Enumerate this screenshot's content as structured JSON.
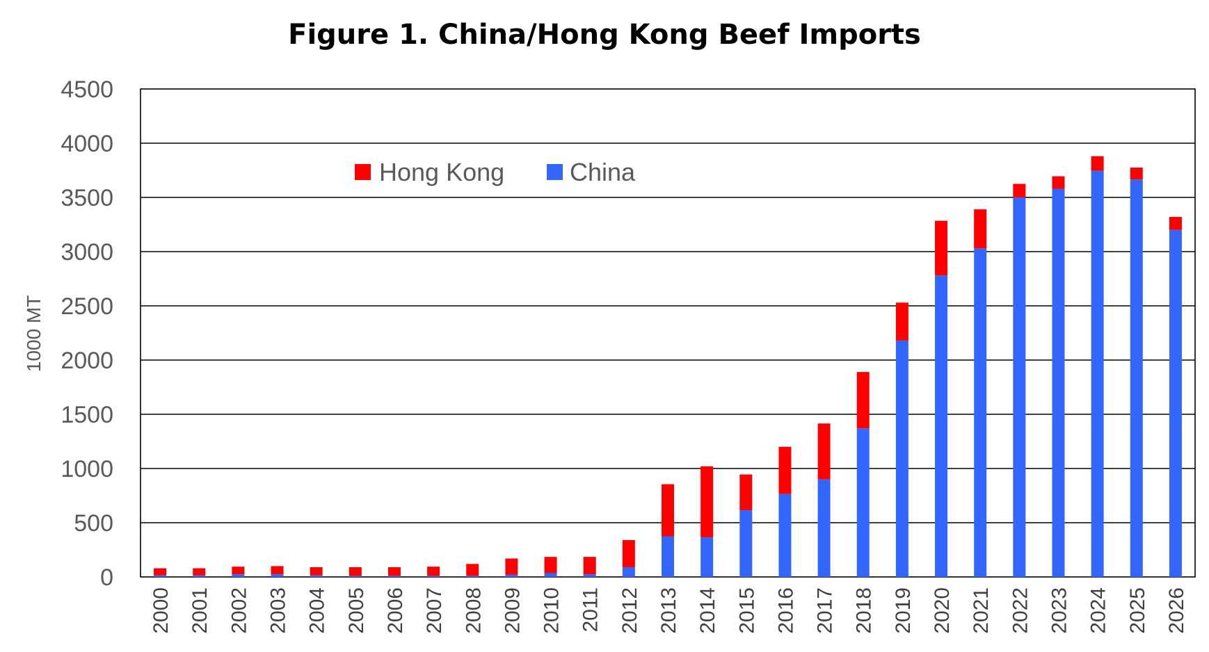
{
  "chart_data": {
    "type": "bar",
    "stacked": true,
    "title": "Figure 1. China/Hong Kong Beef Imports",
    "ylabel": "1000 MT",
    "xlabel": "",
    "ylim": [
      0,
      4500
    ],
    "yticks": [
      0,
      500,
      1000,
      1500,
      2000,
      2500,
      3000,
      3500,
      4000,
      4500
    ],
    "grid": true,
    "legend_position": "top-left",
    "categories": [
      "2000",
      "2001",
      "2002",
      "2003",
      "2004",
      "2005",
      "2006",
      "2007",
      "2008",
      "2009",
      "2010",
      "2011",
      "2012",
      "2013",
      "2014",
      "2015",
      "2016",
      "2017",
      "2018",
      "2019",
      "2020",
      "2021",
      "2022",
      "2023",
      "2024",
      "2025",
      "2026"
    ],
    "series": [
      {
        "name": "China",
        "color": "#3366FF",
        "values": [
          15,
          15,
          25,
          25,
          15,
          10,
          10,
          10,
          10,
          20,
          35,
          25,
          90,
          375,
          365,
          615,
          765,
          900,
          1370,
          2180,
          2780,
          3030,
          3500,
          3580,
          3745,
          3665,
          3200
        ]
      },
      {
        "name": "Hong Kong",
        "color": "#FF0000",
        "values": [
          65,
          65,
          70,
          75,
          75,
          80,
          80,
          85,
          110,
          150,
          150,
          160,
          250,
          480,
          655,
          330,
          435,
          515,
          520,
          350,
          505,
          360,
          125,
          115,
          135,
          110,
          120
        ]
      }
    ],
    "legend_order": [
      "Hong Kong",
      "China"
    ]
  }
}
